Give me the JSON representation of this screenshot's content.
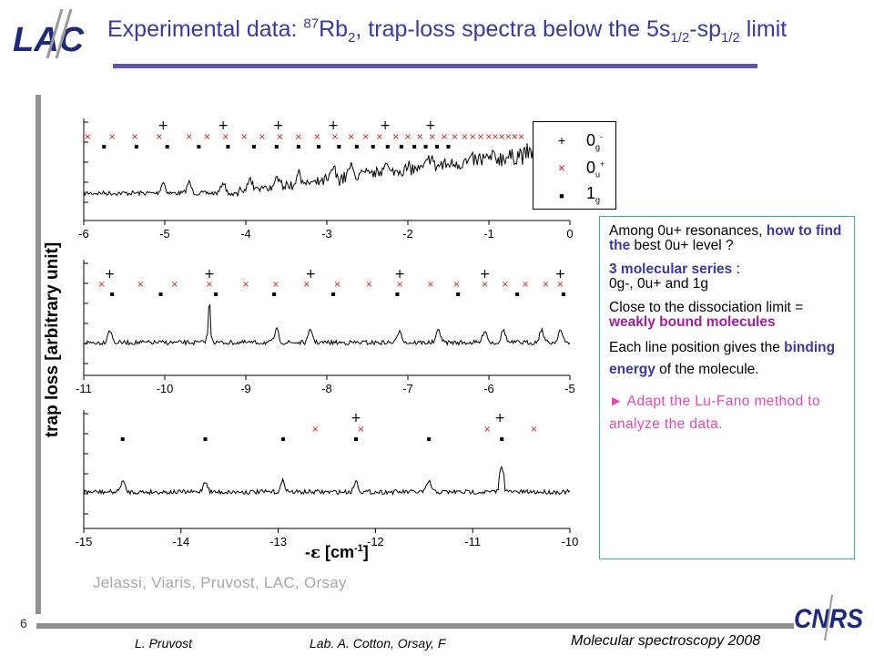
{
  "header": {
    "title_prefix": "Experimental data: ",
    "title_iso": "87",
    "title_mol": "Rb",
    "title_mol_sub": "2",
    "title_mid": ", trap-loss spectra below the 5s",
    "title_s_sub": "1/2",
    "title_dash": "-sp",
    "title_p_sub": "1/2",
    "title_suffix": " limit",
    "logo_left_text": "LAC",
    "logo_right_text": "CNRS"
  },
  "page_number": "6",
  "chart_data": {
    "type": "line",
    "ylabel": "trap loss [arbitrary unit]",
    "xlabel_prefix": "-",
    "xlabel_eps": "ε",
    "xlabel_unit_open": " [cm",
    "xlabel_unit_exp": "-1",
    "xlabel_unit_close": "]",
    "panels": [
      {
        "xlim": [
          -6,
          0
        ],
        "xticks": [
          "-6",
          "-5",
          "-4",
          "-3",
          "-2",
          "-1",
          "0"
        ],
        "markers": {
          "0g-": [
            -5.02,
            -4.28,
            -3.6,
            -2.92,
            -2.28,
            -1.72
          ],
          "0u+": [
            -5.95,
            -5.65,
            -5.37,
            -5.07,
            -4.7,
            -4.48,
            -4.25,
            -4.02,
            -3.8,
            -3.58,
            -3.35,
            -3.12,
            -2.9,
            -2.7,
            -2.52,
            -2.35,
            -2.15,
            -2.0,
            -1.85,
            -1.7,
            -1.55,
            -1.42,
            -1.3,
            -1.2,
            -1.1,
            -1.0,
            -0.92,
            -0.84,
            -0.76,
            -0.68,
            -0.6
          ],
          "1g": [
            -5.75,
            -5.35,
            -4.97,
            -4.58,
            -4.22,
            -3.9,
            -3.62,
            -3.35,
            -3.1,
            -2.85,
            -2.63,
            -2.43,
            -2.25,
            -2.08,
            -1.92,
            -1.78,
            -1.64,
            -1.5
          ]
        },
        "peaks": [
          -5.02,
          -4.7,
          -4.28,
          -3.95,
          -3.6,
          -3.35,
          -2.92,
          -2.7,
          -2.28,
          -1.72
        ]
      },
      {
        "xlim": [
          -11,
          -5
        ],
        "xticks": [
          "-11",
          "-10",
          "-9",
          "-8",
          "-7",
          "-6",
          "-5"
        ],
        "markers": {
          "0g-": [
            -10.68,
            -9.45,
            -8.2,
            -7.1,
            -6.05,
            -5.12
          ],
          "0u+": [
            -10.78,
            -10.3,
            -9.88,
            -9.45,
            -9.0,
            -8.63,
            -8.25,
            -7.87,
            -7.48,
            -7.1,
            -6.72,
            -6.4,
            -6.05,
            -5.8,
            -5.55,
            -5.3,
            -5.12
          ],
          "1g": [
            -10.65,
            -10.05,
            -9.37,
            -8.65,
            -7.92,
            -7.13,
            -6.38,
            -5.65,
            -5.08
          ]
        },
        "peaks": [
          -10.68,
          -9.45,
          -8.62,
          -8.2,
          -7.1,
          -6.62,
          -6.05,
          -5.82,
          -5.35,
          -5.12
        ]
      },
      {
        "xlim": [
          -15,
          -10
        ],
        "xticks": [
          "-15",
          "-14",
          "-13",
          "-12",
          "-11",
          "-10"
        ],
        "markers": {
          "0g-": [
            -12.2,
            -10.72
          ],
          "0u+": [
            -12.62,
            -12.15,
            -10.85,
            -10.37
          ],
          "1g": [
            -14.6,
            -13.75,
            -12.95,
            -12.2,
            -11.45,
            -10.7
          ]
        },
        "peaks": [
          -14.6,
          -13.75,
          -12.95,
          -12.2,
          -11.45,
          -10.7
        ]
      }
    ],
    "legend": [
      {
        "symbol": "+",
        "label": "0",
        "sub": "g",
        "sup": "-",
        "color": "#000000"
      },
      {
        "symbol": "×",
        "label": "0",
        "sub": "u",
        "sup": "+",
        "color": "#cc2020"
      },
      {
        "symbol": "■",
        "label": "1",
        "sub": "g",
        "sup": "",
        "color": "#000000"
      }
    ],
    "colors": {
      "trace": "#000000",
      "cross": "#cc2020",
      "plus": "#000000",
      "square": "#000000"
    }
  },
  "credits": "Jelassi, Viaris, Pruvost, LAC, Orsay",
  "notes": {
    "n1_a": "Among 0u+ resonances, ",
    "n1_b": "how to find the",
    "n1_c": " best 0u+ level ?",
    "n2_a": "3 molecular series",
    "n2_b": " :",
    "n2_c": "0g-, 0u+ and 1g",
    "n3_a": "Close to the dissociation limit = ",
    "n3_b": "weakly bound molecules",
    "n4_a": "Each line position gives the ",
    "n4_b": "binding energy",
    "n4_c": " of the molecule.",
    "n5": "► Adapt the Lu-Fano method to analyze the data."
  },
  "footer": {
    "author": "L. Pruvost",
    "lab": "Lab. A. Cotton, Orsay, F",
    "event": "Molecular spectroscopy  2008"
  },
  "colors": {
    "title": "#3a3a9c",
    "rule": "#5b5ba8",
    "note_border": "#3fa9a9",
    "accent_blue": "#3a3a9c",
    "accent_purple": "#a0209a",
    "accent_pink": "#e04ab0",
    "credit_grey": "#a8a8a8"
  }
}
